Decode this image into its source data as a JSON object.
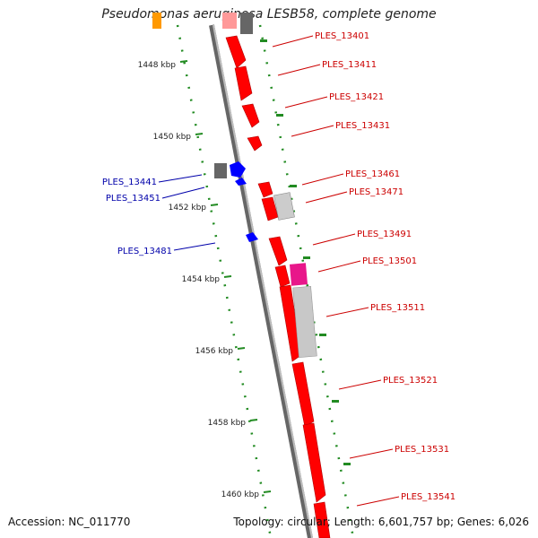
{
  "title": "Pseudomonas aeruginosa LESB58, complete genome",
  "footer": {
    "accession": "Accession: NC_011770",
    "stats": "Topology: circular; Length: 6,601,757 bp; Genes: 6,026"
  },
  "scale": {
    "ticks": [
      "1448 kbp",
      "1450 kbp",
      "1452 kbp",
      "1454 kbp",
      "1456 kbp",
      "1458 kbp",
      "1460 kbp"
    ]
  },
  "genes_right": [
    "PLES_13401",
    "PLES_13411",
    "PLES_13421",
    "PLES_13431",
    "PLES_13461",
    "PLES_13471",
    "PLES_13491",
    "PLES_13501",
    "PLES_13511",
    "PLES_13521",
    "PLES_13531",
    "PLES_13541"
  ],
  "genes_left": [
    "PLES_13441",
    "PLES_13451",
    "PLES_13481"
  ],
  "colors": {
    "forward_gene": "#ff0000",
    "reverse_gene": "#0000ff",
    "other_gene": "#888888",
    "rna_gene": "#e8178a",
    "backbone": "#888888",
    "dotted_track": "#228b22",
    "label_red": "#cc0000",
    "label_blue": "#0000aa"
  }
}
